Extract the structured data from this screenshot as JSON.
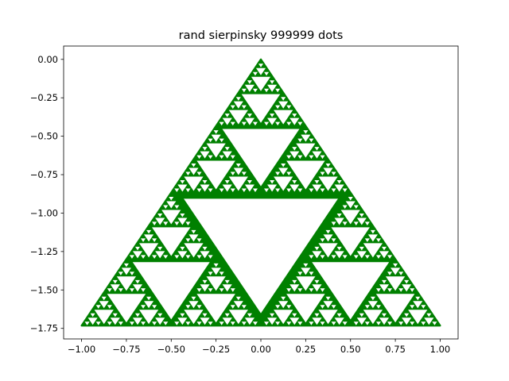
{
  "chart_data": {
    "type": "scatter",
    "title": "rand sierpinsky 999999 dots",
    "xlabel": "",
    "ylabel": "",
    "xlim": [
      -1.0,
      1.0
    ],
    "ylim": [
      -1.7320508,
      0.0
    ],
    "x_ticks": [
      "−1.00",
      "−0.75",
      "−0.50",
      "−0.25",
      "0.00",
      "0.25",
      "0.50",
      "0.75",
      "1.00"
    ],
    "y_ticks": [
      "0.00",
      "−0.25",
      "−0.50",
      "−0.75",
      "−1.00",
      "−1.25",
      "−1.50",
      "−1.75"
    ],
    "grid": false,
    "legend": "none",
    "series": [
      {
        "marker_color": "#008000",
        "point_count": 999999,
        "vertices": [
          [
            0.0,
            0.0
          ],
          [
            -1.0,
            -1.7320508
          ],
          [
            1.0,
            -1.7320508
          ]
        ]
      }
    ]
  }
}
